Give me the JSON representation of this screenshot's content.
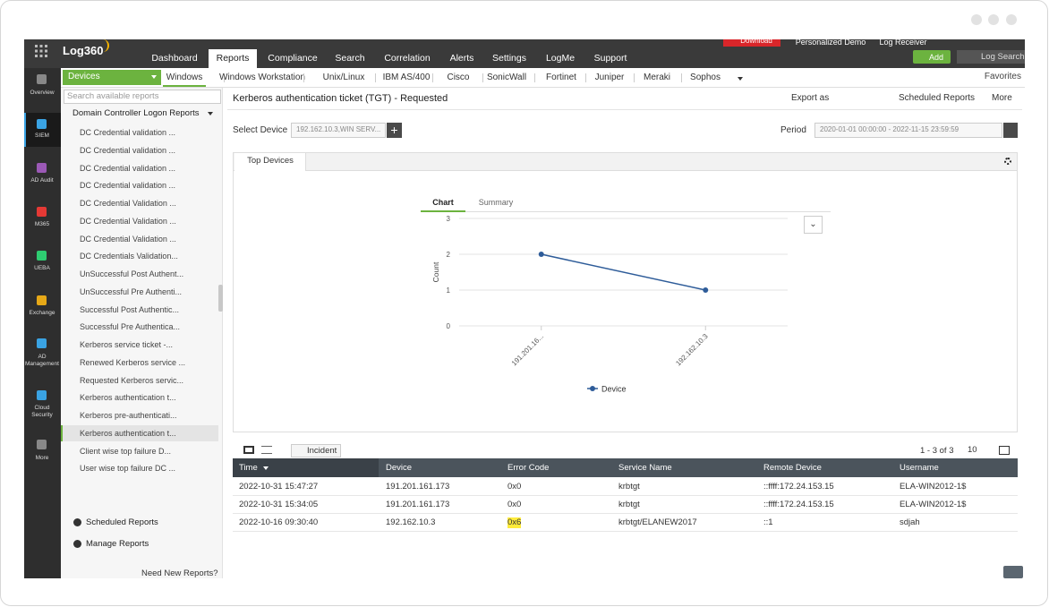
{
  "header": {
    "logo": "Log360",
    "tabs": [
      {
        "label": "Dashboard"
      },
      {
        "label": "Reports",
        "active": true
      },
      {
        "label": "Compliance"
      },
      {
        "label": "Search"
      },
      {
        "label": "Correlation"
      },
      {
        "label": "Alerts"
      },
      {
        "label": "Settings"
      },
      {
        "label": "LogMe"
      },
      {
        "label": "Support"
      }
    ],
    "download": "Download",
    "demo": "Personalized Demo",
    "log_receiver": "Log Receiver",
    "add": "Add",
    "log_search": "Log Search"
  },
  "side_nav": [
    {
      "label": "Overview"
    },
    {
      "label": "SIEM",
      "active": true
    },
    {
      "label": "AD Audit"
    },
    {
      "label": "M365"
    },
    {
      "label": "UEBA"
    },
    {
      "label": "Exchange"
    },
    {
      "label": "AD Management"
    },
    {
      "label": "Cloud Security"
    },
    {
      "label": "More"
    }
  ],
  "sub_nav": {
    "device_menu": "Devices",
    "tabs": [
      {
        "label": "Windows",
        "active": true
      },
      {
        "label": "Windows Workstation"
      },
      {
        "label": "Unix/Linux"
      },
      {
        "label": "IBM AS/400"
      },
      {
        "label": "Cisco"
      },
      {
        "label": "SonicWall"
      },
      {
        "label": "Fortinet"
      },
      {
        "label": "Juniper"
      },
      {
        "label": "Meraki"
      },
      {
        "label": "Sophos"
      }
    ],
    "favorites": "Favorites"
  },
  "report_list": {
    "search_placeholder": "Search available reports",
    "group": "Domain Controller Logon Reports",
    "items": [
      {
        "label": "DC Credential validation ..."
      },
      {
        "label": "DC Credential validation ..."
      },
      {
        "label": "DC Credential validation ..."
      },
      {
        "label": "DC Credential validation ..."
      },
      {
        "label": "DC Credential Validation ..."
      },
      {
        "label": "DC Credential Validation ..."
      },
      {
        "label": "DC Credential Validation ..."
      },
      {
        "label": "DC Credentials Validation..."
      },
      {
        "label": "UnSuccessful Post Authent..."
      },
      {
        "label": "UnSuccessful Pre Authenti..."
      },
      {
        "label": "Successful Post Authentic..."
      },
      {
        "label": "Successful Pre Authentica..."
      },
      {
        "label": "Kerberos service ticket -..."
      },
      {
        "label": "Renewed Kerberos service ..."
      },
      {
        "label": "Requested Kerberos servic..."
      },
      {
        "label": "Kerberos authentication t..."
      },
      {
        "label": "Kerberos pre-authenticati..."
      },
      {
        "label": "Kerberos authentication t...",
        "active": true
      },
      {
        "label": "Client wise top failure D..."
      },
      {
        "label": "User wise top failure DC ..."
      }
    ],
    "scheduled": "Scheduled Reports",
    "manage": "Manage Reports",
    "request": "Need New Reports?"
  },
  "report": {
    "title": "Kerberos authentication ticket (TGT) - Requested",
    "export": "Export as",
    "scheduled": "Scheduled Reports",
    "more": "More",
    "select_device_label": "Select Device",
    "device_value": "192.162.10.3,WIN SERV...",
    "period_label": "Period",
    "period_value": "2020-01-01 00:00:00 - 2022-11-15 23:59:59",
    "panel_tab": "Top Devices"
  },
  "chart": {
    "type": "line",
    "tabs": [
      "Chart",
      "Summary"
    ],
    "y_label": "Count",
    "categories": [
      "191.201.16...",
      "192.162.10.3"
    ],
    "series": [
      {
        "name": "Device",
        "color": "#2e5c99",
        "values": [
          2,
          1
        ]
      }
    ],
    "ylim": [
      0,
      3
    ],
    "yticks": [
      0,
      1,
      2,
      3
    ],
    "grid": true
  },
  "table": {
    "incident": "Incident",
    "pagination": "1 - 3 of 3",
    "page_size": "10",
    "columns": [
      "Time",
      "Device",
      "Error Code",
      "Service Name",
      "Remote Device",
      "Username"
    ],
    "rows": [
      [
        "2022-10-31 15:47:27",
        "191.201.161.173",
        "0x0",
        "krbtgt",
        "::ffff:172.24.153.15",
        "ELA-WIN2012-1$"
      ],
      [
        "2022-10-31 15:34:05",
        "191.201.161.173",
        "0x0",
        "krbtgt",
        "::ffff:172.24.153.15",
        "ELA-WIN2012-1$"
      ],
      [
        "2022-10-16 09:30:40",
        "192.162.10.3",
        "0x6",
        "krbtgt/ELANEW2017",
        "::1",
        "sdjah"
      ]
    ]
  }
}
